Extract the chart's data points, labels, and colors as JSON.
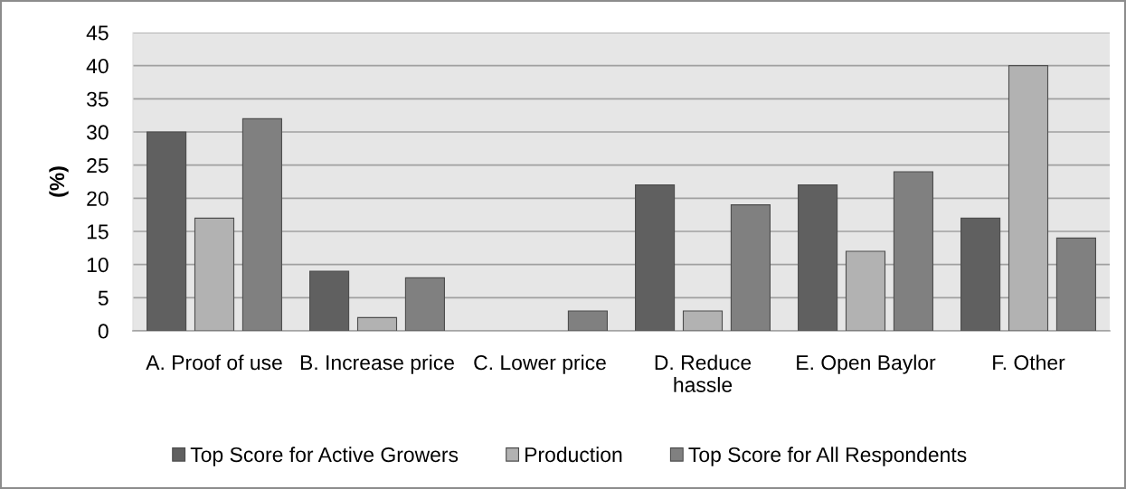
{
  "chart_data": {
    "type": "bar",
    "ylabel": "(%)",
    "categories": [
      "A. Proof of use",
      "B. Increase price",
      "C. Lower price",
      "D. Reduce\nhassle",
      "E. Open Baylor",
      "F. Other"
    ],
    "series": [
      {
        "name": "Top Score for Active Growers",
        "color": "#606060",
        "values": [
          30,
          9,
          null,
          22,
          22,
          17
        ]
      },
      {
        "name": "Production",
        "color": "#b2b2b2",
        "values": [
          17,
          2,
          null,
          3,
          12,
          40
        ]
      },
      {
        "name": "Top Score for All Respondents",
        "color": "#808080",
        "values": [
          32,
          8,
          3,
          19,
          24,
          14
        ]
      }
    ],
    "ylim": [
      0,
      45
    ],
    "yticks": [
      0,
      5,
      10,
      15,
      20,
      25,
      30,
      35,
      40,
      45
    ],
    "grid": "y",
    "legend": "bottom"
  }
}
